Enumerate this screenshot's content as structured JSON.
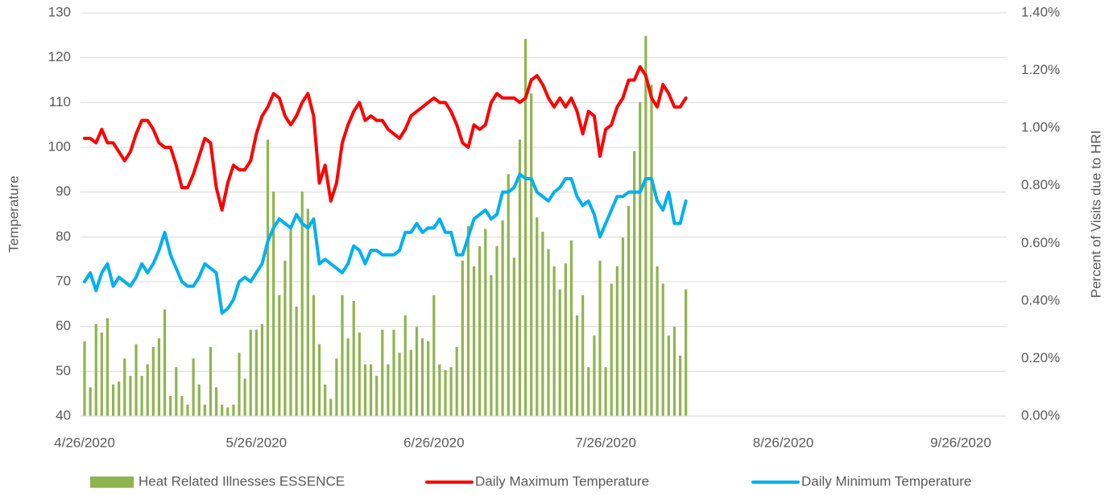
{
  "chart_data": {
    "type": "combo",
    "y_label": "Temperature",
    "y2_label": "Percent of Visits due to HRI",
    "x": [
      "4/26/2020",
      "4/27/2020",
      "4/28/2020",
      "4/29/2020",
      "4/30/2020",
      "5/1/2020",
      "5/2/2020",
      "5/3/2020",
      "5/4/2020",
      "5/5/2020",
      "5/6/2020",
      "5/7/2020",
      "5/8/2020",
      "5/9/2020",
      "5/10/2020",
      "5/11/2020",
      "5/12/2020",
      "5/13/2020",
      "5/14/2020",
      "5/15/2020",
      "5/16/2020",
      "5/17/2020",
      "5/18/2020",
      "5/19/2020",
      "5/20/2020",
      "5/21/2020",
      "5/22/2020",
      "5/23/2020",
      "5/24/2020",
      "5/25/2020",
      "5/26/2020",
      "5/27/2020",
      "5/28/2020",
      "5/29/2020",
      "5/30/2020",
      "5/31/2020",
      "6/1/2020",
      "6/2/2020",
      "6/3/2020",
      "6/4/2020",
      "6/5/2020",
      "6/6/2020",
      "6/7/2020",
      "6/8/2020",
      "6/9/2020",
      "6/10/2020",
      "6/11/2020",
      "6/12/2020",
      "6/13/2020",
      "6/14/2020",
      "6/15/2020",
      "6/16/2020",
      "6/17/2020",
      "6/18/2020",
      "6/19/2020",
      "6/20/2020",
      "6/21/2020",
      "6/22/2020",
      "6/23/2020",
      "6/24/2020",
      "6/25/2020",
      "6/26/2020",
      "6/27/2020",
      "6/28/2020",
      "6/29/2020",
      "6/30/2020",
      "7/1/2020",
      "7/2/2020",
      "7/3/2020",
      "7/4/2020",
      "7/5/2020",
      "7/6/2020",
      "7/7/2020",
      "7/8/2020",
      "7/9/2020",
      "7/10/2020",
      "7/11/2020",
      "7/12/2020",
      "7/13/2020",
      "7/14/2020",
      "7/15/2020",
      "7/16/2020",
      "7/17/2020",
      "7/18/2020",
      "7/19/2020",
      "7/20/2020",
      "7/21/2020",
      "7/22/2020",
      "7/23/2020",
      "7/24/2020",
      "7/25/2020",
      "7/26/2020",
      "7/27/2020",
      "7/28/2020",
      "7/29/2020",
      "7/30/2020",
      "7/31/2020",
      "8/1/2020",
      "8/2/2020",
      "8/3/2020",
      "8/4/2020",
      "8/5/2020",
      "8/6/2020",
      "8/7/2020",
      "8/8/2020",
      "8/9/2020"
    ],
    "series": [
      {
        "name": "Heat Related Illnesses ESSENCE",
        "type": "bar",
        "axis": "y2",
        "color": "#8fb44f",
        "values": [
          0.26,
          0.1,
          0.32,
          0.29,
          0.34,
          0.11,
          0.12,
          0.2,
          0.14,
          0.25,
          0.14,
          0.18,
          0.24,
          0.27,
          0.37,
          0.07,
          0.17,
          0.07,
          0.04,
          0.2,
          0.11,
          0.04,
          0.24,
          0.1,
          0.04,
          0.03,
          0.04,
          0.22,
          0.13,
          0.3,
          0.3,
          0.32,
          0.96,
          0.78,
          0.42,
          0.54,
          0.66,
          0.38,
          0.78,
          0.72,
          0.42,
          0.25,
          0.11,
          0.06,
          0.2,
          0.42,
          0.27,
          0.4,
          0.29,
          0.18,
          0.18,
          0.14,
          0.3,
          0.18,
          0.3,
          0.22,
          0.35,
          0.23,
          0.31,
          0.27,
          0.26,
          0.42,
          0.18,
          0.16,
          0.17,
          0.24,
          0.54,
          0.66,
          0.52,
          0.59,
          0.65,
          0.49,
          0.59,
          0.68,
          0.84,
          0.55,
          0.96,
          1.31,
          1.12,
          0.69,
          0.64,
          0.58,
          0.52,
          0.44,
          0.53,
          0.61,
          0.35,
          0.42,
          0.17,
          0.28,
          0.54,
          0.17,
          0.46,
          0.52,
          0.62,
          0.73,
          0.92,
          1.09,
          1.32,
          1.15,
          0.52,
          0.46,
          0.28,
          0.31,
          0.21,
          0.44
        ]
      },
      {
        "name": "Daily Maximum Temperature",
        "type": "line",
        "color": "#ff0000",
        "values": [
          102,
          102,
          101,
          104,
          101,
          101,
          99,
          97,
          99,
          103,
          106,
          106,
          104,
          101,
          100,
          100,
          96,
          91,
          91,
          94,
          98,
          102,
          101,
          91,
          86,
          92,
          96,
          95,
          95,
          97,
          103,
          107,
          109,
          112,
          111,
          107,
          105,
          107,
          110,
          112,
          107,
          92,
          96,
          88,
          92,
          101,
          105,
          108,
          110,
          106,
          107,
          106,
          106,
          104,
          103,
          102,
          104,
          107,
          108,
          109,
          110,
          111,
          110,
          110,
          108,
          105,
          101,
          100,
          105,
          104,
          105,
          110,
          112,
          111,
          111,
          111,
          110,
          111,
          115,
          116,
          114,
          111,
          109,
          111,
          109,
          111,
          108,
          103,
          108,
          107,
          98,
          104,
          105,
          109,
          111,
          115,
          115,
          118,
          116,
          111,
          109,
          114,
          112,
          109,
          109,
          111
        ]
      },
      {
        "name": "Daily Minimum Temperature",
        "type": "line",
        "color": "#00b0f0",
        "values": [
          70,
          72,
          68,
          72,
          74,
          69,
          71,
          70,
          69,
          71,
          74,
          72,
          74,
          77,
          81,
          76,
          73,
          70,
          69,
          69,
          71,
          74,
          73,
          72,
          63,
          64,
          66,
          70,
          71,
          70,
          72,
          74,
          79,
          82,
          84,
          83,
          82,
          85,
          83,
          82,
          84,
          74,
          75,
          74,
          73,
          72,
          74,
          78,
          77,
          74,
          77,
          77,
          76,
          76,
          76,
          77,
          81,
          81,
          83,
          81,
          82,
          82,
          84,
          81,
          81,
          76,
          76,
          80,
          84,
          85,
          86,
          84,
          85,
          90,
          90,
          91,
          94,
          93,
          93,
          90,
          89,
          88,
          90,
          91,
          93,
          93,
          89,
          87,
          88,
          85,
          80,
          83,
          86,
          89,
          89,
          90,
          90,
          90,
          93,
          93,
          88,
          86,
          90,
          83,
          83,
          88
        ]
      }
    ],
    "xlim": [
      "4/26/2020",
      "9/26/2020"
    ],
    "xticks": [
      "4/26/2020",
      "5/26/2020",
      "6/26/2020",
      "7/26/2020",
      "8/26/2020",
      "9/26/2020"
    ],
    "ylim": [
      40,
      130
    ],
    "yticks": [
      40,
      50,
      60,
      70,
      80,
      90,
      100,
      110,
      120,
      130
    ],
    "y2lim": [
      0,
      1.4
    ],
    "y2ticks": [
      {
        "value": 0,
        "label": "0.00%"
      },
      {
        "value": 0.2,
        "label": "0.20%"
      },
      {
        "value": 0.4,
        "label": "0.40%"
      },
      {
        "value": 0.6,
        "label": "0.60%"
      },
      {
        "value": 0.8,
        "label": "0.80%"
      },
      {
        "value": 1.0,
        "label": "1.00%"
      },
      {
        "value": 1.2,
        "label": "1.20%"
      },
      {
        "value": 1.4,
        "label": "1.40%"
      }
    ],
    "grid": true,
    "legend": "bottom"
  }
}
